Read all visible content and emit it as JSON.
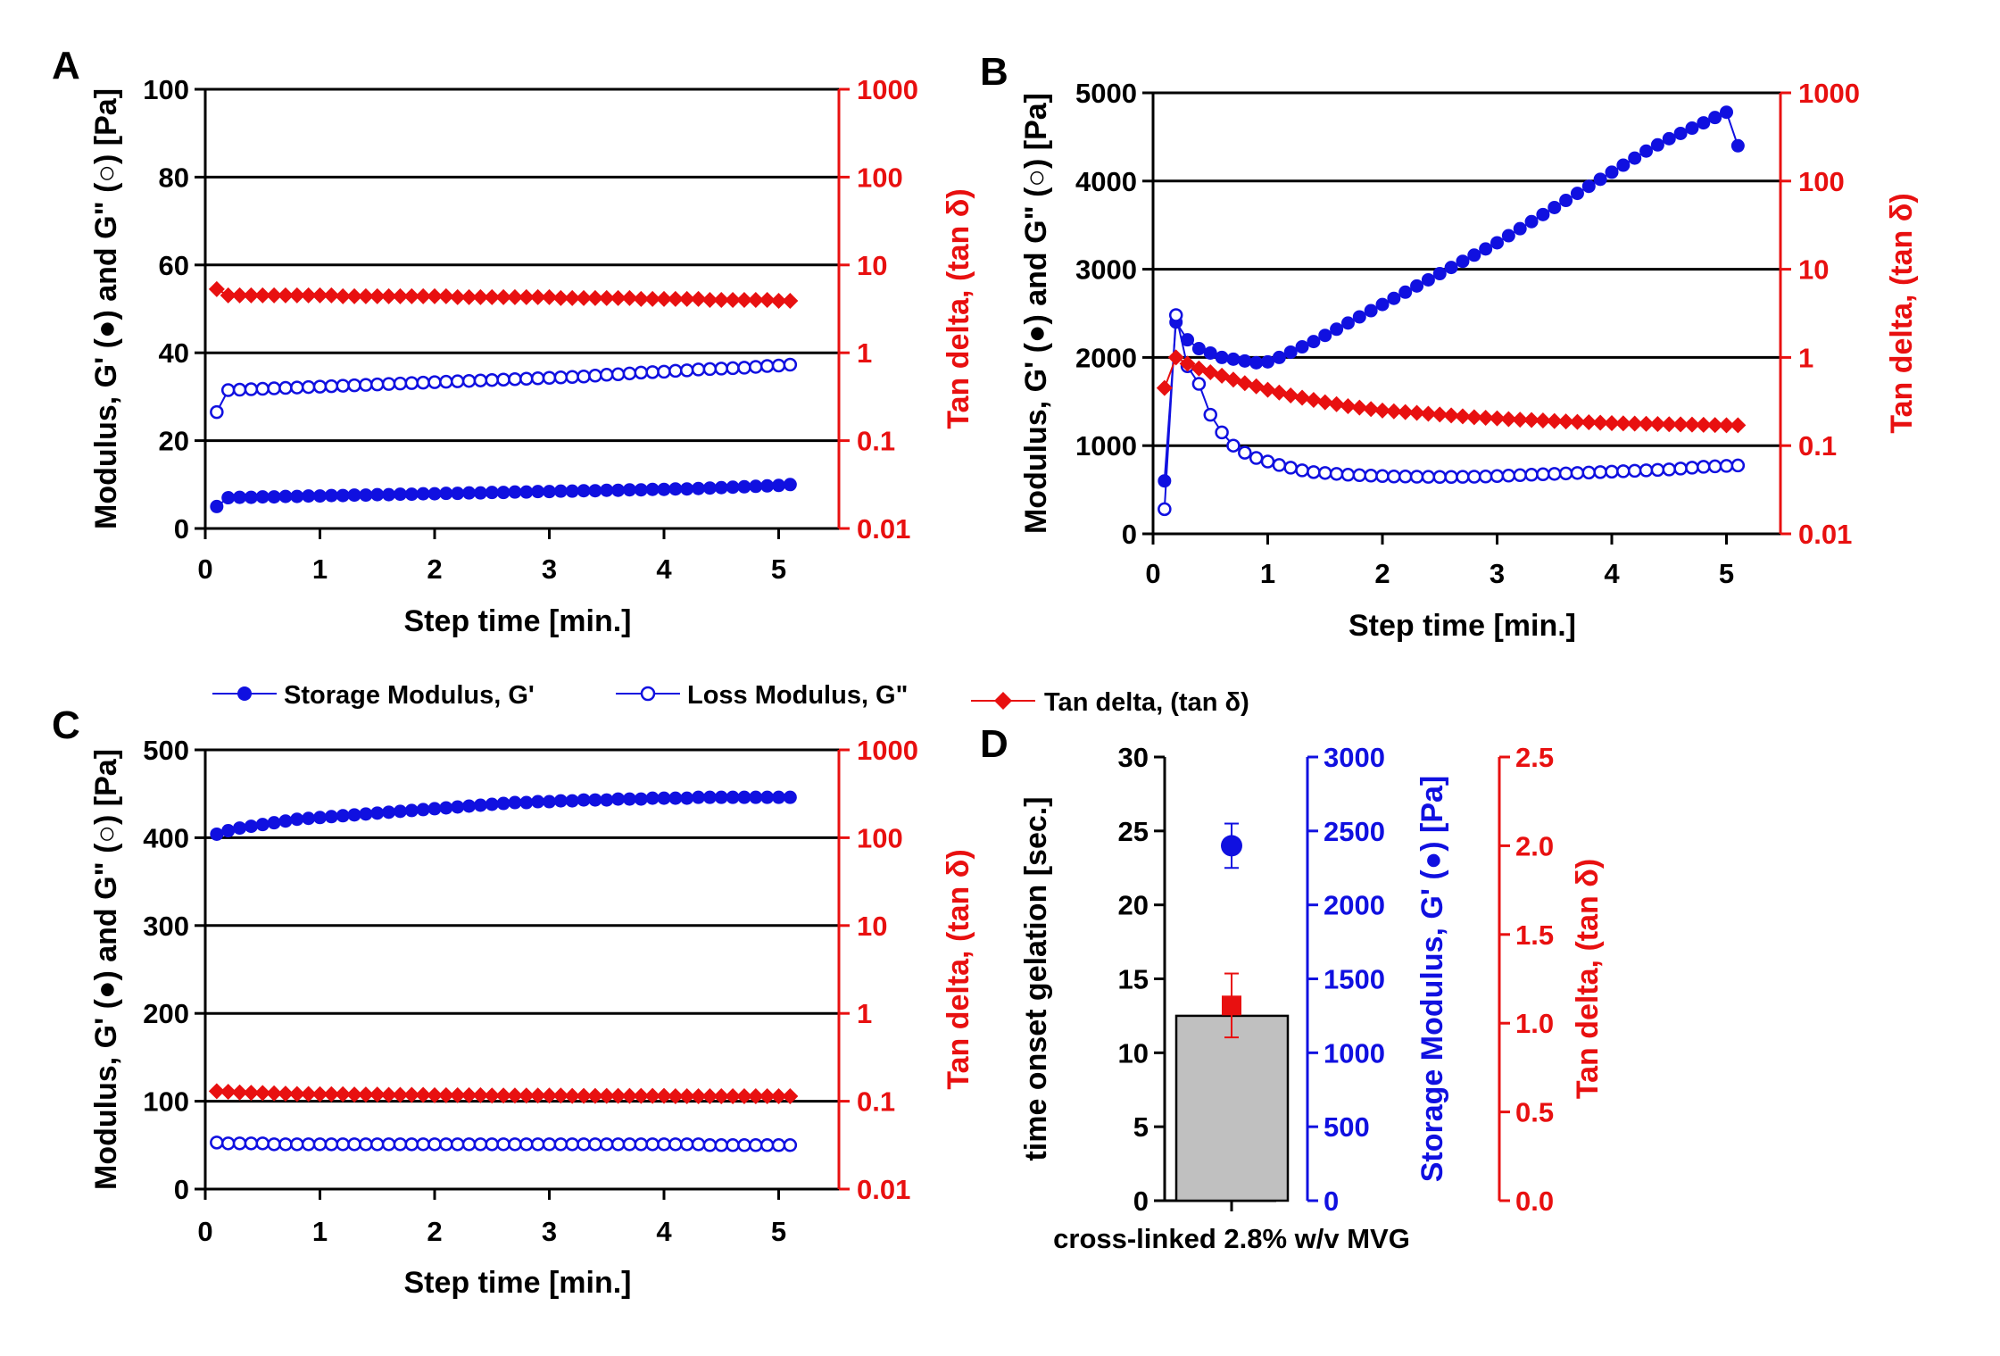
{
  "colors": {
    "blue": "#1010e0",
    "red": "#e81010",
    "grid": "#000000",
    "bar": "#c0c0c0"
  },
  "legend": {
    "storage": "Storage Modulus, G'",
    "loss": "Loss Modulus, G\"",
    "tan": "Tan delta, (tan δ)"
  },
  "chart_data": [
    {
      "panel": "A",
      "type": "line",
      "xlabel": "Step time [min.]",
      "ylabel": "Modulus, G' (●) and G\" (○) [Pa]",
      "y2label": "Tan delta, (tan δ)",
      "xlim": [
        0,
        5.5
      ],
      "ylim": [
        0,
        100
      ],
      "y2lim": [
        0.01,
        1000
      ],
      "y2scale": "log",
      "xticks": [
        "0",
        "1",
        "2",
        "3",
        "4",
        "5"
      ],
      "yticks": [
        "0",
        "20",
        "40",
        "60",
        "80",
        "100"
      ],
      "y2ticks": [
        "0.01",
        "0.1",
        "1",
        "10",
        "100",
        "1000"
      ],
      "x": [
        0.1,
        0.2,
        0.3,
        0.4,
        0.5,
        0.6,
        0.7,
        0.8,
        0.9,
        1.0,
        1.1,
        1.2,
        1.3,
        1.4,
        1.5,
        1.6,
        1.7,
        1.8,
        1.9,
        2.0,
        2.1,
        2.2,
        2.3,
        2.4,
        2.5,
        2.6,
        2.7,
        2.8,
        2.9,
        3.0,
        3.1,
        3.2,
        3.3,
        3.4,
        3.5,
        3.6,
        3.7,
        3.8,
        3.9,
        4.0,
        4.1,
        4.2,
        4.3,
        4.4,
        4.5,
        4.6,
        4.7,
        4.8,
        4.9,
        5.0,
        5.1
      ],
      "series": [
        {
          "name": "Storage Modulus, G'",
          "axis": "left",
          "marker": "filled-circle",
          "values": [
            5.0,
            7.0,
            7.1,
            7.1,
            7.2,
            7.2,
            7.3,
            7.3,
            7.4,
            7.4,
            7.5,
            7.5,
            7.6,
            7.6,
            7.7,
            7.7,
            7.8,
            7.8,
            7.9,
            7.9,
            8.0,
            8.0,
            8.1,
            8.1,
            8.2,
            8.2,
            8.3,
            8.3,
            8.4,
            8.4,
            8.5,
            8.5,
            8.6,
            8.6,
            8.7,
            8.7,
            8.8,
            8.8,
            8.9,
            8.9,
            9.0,
            9.0,
            9.1,
            9.2,
            9.3,
            9.4,
            9.5,
            9.6,
            9.7,
            9.8,
            10.0
          ]
        },
        {
          "name": "Loss Modulus, G\"",
          "axis": "left",
          "marker": "open-circle",
          "values": [
            26.5,
            31.5,
            31.6,
            31.7,
            31.8,
            31.9,
            32.0,
            32.1,
            32.2,
            32.3,
            32.4,
            32.5,
            32.6,
            32.7,
            32.8,
            32.9,
            33.0,
            33.1,
            33.2,
            33.3,
            33.4,
            33.5,
            33.6,
            33.7,
            33.8,
            33.9,
            34.0,
            34.1,
            34.2,
            34.3,
            34.4,
            34.5,
            34.6,
            34.8,
            35.0,
            35.1,
            35.3,
            35.5,
            35.6,
            35.7,
            35.9,
            36.0,
            36.2,
            36.3,
            36.4,
            36.5,
            36.6,
            36.8,
            37.0,
            37.1,
            37.3
          ]
        },
        {
          "name": "Tan delta, (tan δ)",
          "axis": "right",
          "marker": "diamond",
          "values": [
            5.3,
            4.5,
            4.5,
            4.5,
            4.5,
            4.5,
            4.5,
            4.5,
            4.5,
            4.5,
            4.5,
            4.4,
            4.4,
            4.4,
            4.4,
            4.4,
            4.4,
            4.4,
            4.4,
            4.4,
            4.4,
            4.3,
            4.3,
            4.3,
            4.3,
            4.3,
            4.3,
            4.3,
            4.3,
            4.3,
            4.2,
            4.2,
            4.2,
            4.2,
            4.2,
            4.2,
            4.2,
            4.1,
            4.1,
            4.1,
            4.1,
            4.1,
            4.1,
            4.0,
            4.0,
            4.0,
            4.0,
            4.0,
            4.0,
            3.9,
            3.9
          ]
        }
      ]
    },
    {
      "panel": "B",
      "type": "line",
      "xlabel": "Step time [min.]",
      "ylabel": "Modulus, G' (●) and G\" (○) [Pa]",
      "y2label": "Tan delta, (tan δ)",
      "xlim": [
        0,
        5.5
      ],
      "ylim": [
        0,
        5000
      ],
      "y2lim": [
        0.01,
        1000
      ],
      "y2scale": "log",
      "xticks": [
        "0",
        "1",
        "2",
        "3",
        "4",
        "5"
      ],
      "yticks": [
        "0",
        "1000",
        "2000",
        "3000",
        "4000",
        "5000"
      ],
      "y2ticks": [
        "0.01",
        "0.1",
        "1",
        "10",
        "100",
        "1000"
      ],
      "x": [
        0.1,
        0.2,
        0.3,
        0.4,
        0.5,
        0.6,
        0.7,
        0.8,
        0.9,
        1.0,
        1.1,
        1.2,
        1.3,
        1.4,
        1.5,
        1.6,
        1.7,
        1.8,
        1.9,
        2.0,
        2.1,
        2.2,
        2.3,
        2.4,
        2.5,
        2.6,
        2.7,
        2.8,
        2.9,
        3.0,
        3.1,
        3.2,
        3.3,
        3.4,
        3.5,
        3.6,
        3.7,
        3.8,
        3.9,
        4.0,
        4.1,
        4.2,
        4.3,
        4.4,
        4.5,
        4.6,
        4.7,
        4.8,
        4.9,
        5.0,
        5.1
      ],
      "series": [
        {
          "name": "Storage Modulus, G'",
          "axis": "left",
          "marker": "filled-circle",
          "values": [
            600,
            2400,
            2200,
            2100,
            2050,
            2000,
            1980,
            1960,
            1940,
            1950,
            2000,
            2060,
            2120,
            2180,
            2250,
            2320,
            2390,
            2460,
            2530,
            2600,
            2670,
            2740,
            2810,
            2880,
            2950,
            3020,
            3090,
            3160,
            3230,
            3300,
            3380,
            3460,
            3540,
            3620,
            3700,
            3780,
            3860,
            3940,
            4020,
            4100,
            4180,
            4260,
            4340,
            4410,
            4480,
            4540,
            4600,
            4660,
            4720,
            4780,
            4400
          ]
        },
        {
          "name": "Loss Modulus, G\"",
          "axis": "left",
          "marker": "open-circle",
          "values": [
            280,
            2480,
            1900,
            1700,
            1350,
            1150,
            1000,
            920,
            860,
            820,
            780,
            750,
            720,
            700,
            690,
            680,
            670,
            665,
            660,
            655,
            650,
            650,
            648,
            646,
            645,
            645,
            646,
            648,
            650,
            655,
            660,
            665,
            670,
            675,
            680,
            685,
            690,
            695,
            700,
            705,
            710,
            715,
            720,
            725,
            730,
            740,
            750,
            760,
            765,
            770,
            775
          ]
        },
        {
          "name": "Tan delta, (tan δ)",
          "axis": "right",
          "marker": "diamond",
          "values": [
            0.45,
            1.0,
            0.85,
            0.75,
            0.68,
            0.62,
            0.56,
            0.51,
            0.47,
            0.43,
            0.4,
            0.37,
            0.35,
            0.33,
            0.31,
            0.295,
            0.28,
            0.27,
            0.26,
            0.25,
            0.245,
            0.24,
            0.235,
            0.23,
            0.225,
            0.22,
            0.215,
            0.21,
            0.207,
            0.204,
            0.2,
            0.197,
            0.195,
            0.193,
            0.19,
            0.188,
            0.186,
            0.184,
            0.182,
            0.18,
            0.179,
            0.178,
            0.177,
            0.176,
            0.175,
            0.174,
            0.173,
            0.172,
            0.171,
            0.17,
            0.17
          ]
        }
      ]
    },
    {
      "panel": "C",
      "type": "line",
      "xlabel": "Step time [min.]",
      "ylabel": "Modulus, G' (●) and G\" (○) [Pa]",
      "y2label": "Tan delta, (tan δ)",
      "xlim": [
        0,
        5.5
      ],
      "ylim": [
        0,
        500
      ],
      "y2lim": [
        0.01,
        1000
      ],
      "y2scale": "log",
      "xticks": [
        "0",
        "1",
        "2",
        "3",
        "4",
        "5"
      ],
      "yticks": [
        "0",
        "100",
        "200",
        "300",
        "400",
        "500"
      ],
      "y2ticks": [
        "0.01",
        "0.1",
        "1",
        "10",
        "100",
        "1000"
      ],
      "x": [
        0.1,
        0.2,
        0.3,
        0.4,
        0.5,
        0.6,
        0.7,
        0.8,
        0.9,
        1.0,
        1.1,
        1.2,
        1.3,
        1.4,
        1.5,
        1.6,
        1.7,
        1.8,
        1.9,
        2.0,
        2.1,
        2.2,
        2.3,
        2.4,
        2.5,
        2.6,
        2.7,
        2.8,
        2.9,
        3.0,
        3.1,
        3.2,
        3.3,
        3.4,
        3.5,
        3.6,
        3.7,
        3.8,
        3.9,
        4.0,
        4.1,
        4.2,
        4.3,
        4.4,
        4.5,
        4.6,
        4.7,
        4.8,
        4.9,
        5.0,
        5.1
      ],
      "series": [
        {
          "name": "Storage Modulus, G'",
          "axis": "left",
          "marker": "filled-circle",
          "values": [
            404,
            408,
            411,
            413,
            415,
            417,
            419,
            421,
            422,
            423,
            424,
            425,
            426,
            427,
            428,
            429,
            430,
            431,
            432,
            433,
            434,
            435,
            436,
            437,
            438,
            439,
            440,
            440,
            441,
            441,
            442,
            442,
            443,
            443,
            443,
            444,
            444,
            444,
            445,
            445,
            445,
            445,
            446,
            446,
            446,
            446,
            446,
            446,
            446,
            446,
            446
          ]
        },
        {
          "name": "Loss Modulus, G\"",
          "axis": "left",
          "marker": "open-circle",
          "values": [
            53,
            52,
            52,
            52,
            52,
            51,
            51,
            51,
            51,
            51,
            51,
            51,
            51,
            51,
            51,
            51,
            51,
            51,
            51,
            51,
            51,
            51,
            51,
            51,
            51,
            51,
            51,
            51,
            51,
            51,
            51,
            51,
            51,
            51,
            51,
            51,
            51,
            51,
            51,
            51,
            51,
            51,
            51,
            50,
            50,
            50,
            50,
            50,
            50,
            50,
            50
          ]
        },
        {
          "name": "Tan delta, (tan δ)",
          "axis": "right",
          "marker": "diamond",
          "values": [
            0.13,
            0.128,
            0.126,
            0.125,
            0.124,
            0.123,
            0.122,
            0.121,
            0.121,
            0.12,
            0.12,
            0.12,
            0.119,
            0.119,
            0.119,
            0.118,
            0.118,
            0.118,
            0.118,
            0.117,
            0.117,
            0.117,
            0.117,
            0.117,
            0.116,
            0.116,
            0.116,
            0.116,
            0.116,
            0.116,
            0.116,
            0.115,
            0.115,
            0.115,
            0.115,
            0.115,
            0.115,
            0.115,
            0.115,
            0.115,
            0.114,
            0.114,
            0.114,
            0.114,
            0.114,
            0.114,
            0.114,
            0.114,
            0.114,
            0.114,
            0.114
          ]
        }
      ]
    },
    {
      "panel": "D",
      "type": "bar",
      "categories": [
        "cross-linked 2.8% w/v MVG"
      ],
      "ylabel": "time onset gelation [sec.]",
      "y2label": "Storage Modulus, G' (●) [Pa]",
      "y3label": "Tan delta, (tan δ)",
      "ylim": [
        0,
        30
      ],
      "y2lim": [
        0,
        3000
      ],
      "y3lim": [
        0,
        2.5
      ],
      "yticks": [
        "0",
        "5",
        "10",
        "15",
        "20",
        "25",
        "30"
      ],
      "y2ticks": [
        "0",
        "500",
        "1000",
        "1500",
        "2000",
        "2500",
        "3000"
      ],
      "y3ticks": [
        "0.0",
        "0.5",
        "1.0",
        "1.5",
        "2.0",
        "2.5"
      ],
      "bar_value": 12.5,
      "storage_modulus": {
        "value": 2400,
        "error": 150
      },
      "tan_delta": {
        "value": 1.1,
        "error": 0.18
      }
    }
  ]
}
